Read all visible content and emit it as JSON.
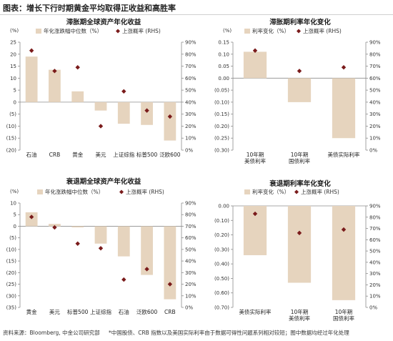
{
  "header": {
    "title": "图表：增长下行时期黄金平均取得正收益和高胜率"
  },
  "legend": {
    "bar_label_assets": "年化涨跌幅中位数（%）",
    "bar_label_rates": "利率变化（%）",
    "dot_label": "上涨概率 (RHS)"
  },
  "colors": {
    "bar": "#e6d4be",
    "dot": "#7a1b1b",
    "axis": "#8c8c8c"
  },
  "footer": {
    "source": "资料来源：Bloomberg, 中金公司研究部",
    "note": "*中国股债、CRB 指数以及美国实际利率由于数据可得性问题系列相对较短；图中数据均经过年化处理"
  },
  "chart_data": [
    {
      "id": "stagflation-assets",
      "type": "bar",
      "title": "滞胀期全球资产年化收益",
      "legend_key": "bar_label_assets",
      "left_unit": "(%)",
      "ylim": [
        -20,
        25
      ],
      "left_ticks": [
        -20,
        -15,
        -10,
        -5,
        0,
        5,
        10,
        15,
        20,
        25
      ],
      "left_tick_labels": [
        "(20)",
        "(15)",
        "(10)",
        "(5)",
        "0",
        "5",
        "10",
        "15",
        "20",
        "25"
      ],
      "y2lim": [
        0,
        90
      ],
      "right_ticks": [
        0,
        10,
        20,
        30,
        40,
        50,
        60,
        70,
        80,
        90
      ],
      "right_tick_labels": [
        "0%",
        "10%",
        "20%",
        "30%",
        "40%",
        "50%",
        "60%",
        "70%",
        "80%",
        "90%"
      ],
      "categories": [
        "石油",
        "CRB",
        "黄金",
        "美元",
        "上证综指",
        "标普500",
        "泛欧600"
      ],
      "values": [
        19,
        13.5,
        4.5,
        -3.5,
        -9,
        -9.5,
        -16
      ],
      "probabilities": [
        83,
        66,
        69,
        20,
        49,
        33,
        28
      ]
    },
    {
      "id": "stagflation-rates",
      "type": "bar",
      "title": "滞胀期利率年化变化",
      "legend_key": "bar_label_rates",
      "left_unit": "(%)",
      "ylim": [
        -0.3,
        0.15
      ],
      "left_ticks": [
        -0.3,
        -0.25,
        -0.2,
        -0.15,
        -0.1,
        -0.05,
        0,
        0.05,
        0.1,
        0.15
      ],
      "left_tick_labels": [
        "(0.30)",
        "(0.25)",
        "(0.20)",
        "(0.15)",
        "(0.10)",
        "(0.05)",
        "0.00",
        "0.05",
        "0.10",
        "0.15"
      ],
      "y2lim": [
        0,
        90
      ],
      "right_ticks": [
        0,
        10,
        20,
        30,
        40,
        50,
        60,
        70,
        80,
        90
      ],
      "right_tick_labels": [
        "0%",
        "10%",
        "20%",
        "30%",
        "40%",
        "50%",
        "60%",
        "70%",
        "80%",
        "90%"
      ],
      "categories": [
        "10年期\n美债利率",
        "10年期\n国债利率",
        "美债实际利率"
      ],
      "values": [
        0.11,
        -0.1,
        -0.25
      ],
      "probabilities": [
        83,
        66,
        69
      ]
    },
    {
      "id": "recession-assets",
      "type": "bar",
      "title": "衰退期全球资产年化收益",
      "legend_key": "bar_label_assets",
      "left_unit": "(%)",
      "ylim": [
        -35,
        10
      ],
      "left_ticks": [
        -35,
        -30,
        -25,
        -20,
        -15,
        -10,
        -5,
        0,
        5,
        10
      ],
      "left_tick_labels": [
        "(35)",
        "(30)",
        "(25)",
        "(20)",
        "(15)",
        "(10)",
        "(5)",
        "0",
        "5",
        "10"
      ],
      "y2lim": [
        0,
        90
      ],
      "right_ticks": [
        0,
        10,
        20,
        30,
        40,
        50,
        60,
        70,
        80,
        90
      ],
      "right_tick_labels": [
        "0%",
        "10%",
        "20%",
        "30%",
        "40%",
        "50%",
        "60%",
        "70%",
        "80%",
        "90%"
      ],
      "categories": [
        "黄金",
        "美元",
        "标普500",
        "上证综指",
        "石油",
        "泛欧600",
        "CRB"
      ],
      "values": [
        6,
        1,
        -0.5,
        -7.5,
        -13,
        -21,
        -31.5
      ],
      "probabilities": [
        78,
        69,
        55,
        51,
        24,
        33,
        20
      ]
    },
    {
      "id": "recession-rates",
      "type": "bar",
      "title": "衰退期利率年化变化",
      "legend_key": "bar_label_rates",
      "left_unit": "",
      "ylim": [
        -0.7,
        0
      ],
      "left_ticks": [
        -0.7,
        -0.6,
        -0.5,
        -0.4,
        -0.3,
        -0.2,
        -0.1,
        0
      ],
      "left_tick_labels": [
        "(0.70)",
        "(0.60)",
        "(0.50)",
        "(0.40)",
        "(0.30)",
        "(0.20)",
        "(0.10)",
        "0.00"
      ],
      "y2lim": [
        0,
        90
      ],
      "right_ticks": [
        0,
        10,
        20,
        30,
        40,
        50,
        60,
        70,
        80,
        90
      ],
      "right_tick_labels": [
        "0%",
        "10%",
        "20%",
        "30%",
        "40%",
        "50%",
        "60%",
        "70%",
        "80%",
        "90%"
      ],
      "categories": [
        "美债实际利率",
        "10年期\n美债利率",
        "10年期\n国债利率"
      ],
      "values": [
        -0.34,
        -0.53,
        -0.65
      ],
      "probabilities": [
        83,
        66,
        69
      ]
    }
  ]
}
